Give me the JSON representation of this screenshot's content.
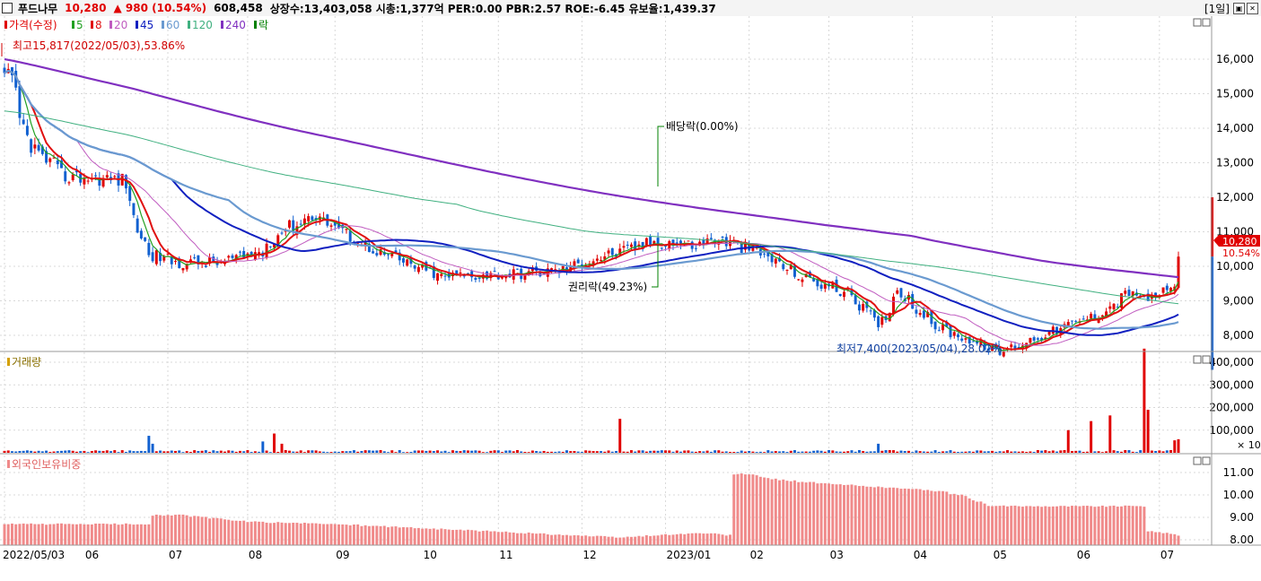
{
  "header": {
    "name": "푸드나무",
    "price": "10,280",
    "change": "▲ 980 (10.54%)",
    "volume": "608,458",
    "stats": "상장수:13,403,058  시총:1,377억  PER:0.00  PBR:2.57  ROE:-6.45  유보율:1,439.37",
    "period": "[1일]"
  },
  "legend": {
    "price": "가격(수정)",
    "ma": [
      {
        "label": "5",
        "color": "#22a022"
      },
      {
        "label": "8",
        "color": "#e01010"
      },
      {
        "label": "20",
        "color": "#c05cc0"
      },
      {
        "label": "45",
        "color": "#1020c0"
      },
      {
        "label": "60",
        "color": "#6a9ad0"
      },
      {
        "label": "120",
        "color": "#40b080"
      },
      {
        "label": "240",
        "color": "#8030c0"
      }
    ],
    "rak": "락"
  },
  "colors": {
    "up": "#e00000",
    "down": "#1060d0",
    "ma5": "#22a022",
    "ma8": "#e01010",
    "ma20": "#c05cc0",
    "ma45": "#1020c0",
    "ma60": "#6a9ad0",
    "ma120": "#40b080",
    "ma240": "#8030c0",
    "foreign": "#f08a8a"
  },
  "annotations": {
    "high": "최고15,817(2022/05/03),53.86%",
    "dividend": "배당락(0.00%)",
    "rights": "권리락(49.23%)",
    "low": "최저7,400(2023/05/04),28.02%"
  },
  "panels": {
    "volume_title": "거래량",
    "foreign_title": "외국인보유비중",
    "volume_unit": "× 10"
  },
  "price_tags": {
    "price": "10,280",
    "pct": "10.54%"
  },
  "chart_data": [
    {
      "type": "candlestick",
      "title": "가격(수정)",
      "ylim": [
        7000,
        16500
      ],
      "yticks": [
        "16,000",
        "15,000",
        "14,000",
        "13,000",
        "12,000",
        "11,000",
        "10,000",
        "9,000",
        "8,000"
      ],
      "xticks": [
        "2022/05/03",
        "06",
        "07",
        "08",
        "09",
        "10",
        "11",
        "12",
        "2023/01",
        "02",
        "03",
        "04",
        "05",
        "06",
        "07"
      ],
      "close_anchors": {
        "dates": [
          "2022-05-03",
          "2022-05-12",
          "2022-05-25",
          "2022-06-15",
          "2022-06-24",
          "2022-07-05",
          "2022-07-20",
          "2022-08-05",
          "2022-08-12",
          "2022-08-25",
          "2022-09-15",
          "2022-10-10",
          "2022-11-10",
          "2022-11-25",
          "2022-12-05",
          "2022-12-15",
          "2022-12-28",
          "2023-01-03",
          "2023-01-12",
          "2023-01-20",
          "2023-02-05",
          "2023-02-20",
          "2023-03-10",
          "2023-03-21",
          "2023-03-28",
          "2023-04-10",
          "2023-04-25",
          "2023-05-04",
          "2023-05-20",
          "2023-05-30",
          "2023-06-10",
          "2023-06-22",
          "2023-06-26",
          "2023-07-06",
          "2023-07-10"
        ],
        "values": [
          15800,
          13500,
          12600,
          12500,
          10400,
          10100,
          10100,
          10400,
          11000,
          11500,
          10500,
          9700,
          9800,
          9900,
          10200,
          10400,
          10700,
          10700,
          10600,
          10800,
          10400,
          9700,
          9200,
          8300,
          9300,
          8300,
          7800,
          7500,
          8000,
          8300,
          8600,
          9300,
          9000,
          9300,
          10280
        ]
      },
      "ma_end": {
        "5": 9600,
        "8": 9700,
        "20": 9700,
        "45": 8800,
        "60": 8600,
        "120": 8950,
        "240": 9750
      },
      "ma240_start": 16000,
      "high": 15817,
      "low": 7400
    },
    {
      "type": "bar",
      "title": "거래량",
      "ylim": [
        0,
        480000
      ],
      "yticks": [
        "400,000",
        "300,000",
        "200,000",
        "100,000"
      ],
      "spikes": [
        {
          "date": "2022-06-24",
          "value": 75000
        },
        {
          "date": "2022-06-27",
          "value": 40000
        },
        {
          "date": "2022-08-05",
          "value": 50000
        },
        {
          "date": "2022-08-10",
          "value": 85000
        },
        {
          "date": "2022-08-12",
          "value": 40000
        },
        {
          "date": "2022-12-15",
          "value": 150000
        },
        {
          "date": "2023-03-21",
          "value": 40000
        },
        {
          "date": "2023-05-30",
          "value": 100000
        },
        {
          "date": "2023-06-07",
          "value": 140000
        },
        {
          "date": "2023-06-14",
          "value": 165000
        },
        {
          "date": "2023-06-27",
          "value": 460000
        },
        {
          "date": "2023-06-28",
          "value": 190000
        },
        {
          "date": "2023-07-07",
          "value": 55000
        },
        {
          "date": "2023-07-10",
          "value": 60000
        }
      ]
    },
    {
      "type": "bar",
      "title": "외국인보유비중",
      "ylim": [
        7.8,
        11.6
      ],
      "yticks": [
        "11.00",
        "10.00",
        "9.00",
        "8.00"
      ],
      "levels": {
        "dates": [
          "2022-05-03",
          "2022-06-24",
          "2022-06-27",
          "2022-07-07",
          "2022-08-01",
          "2022-09-01",
          "2022-12-16",
          "2022-12-28",
          "2023-01-15",
          "2023-01-25",
          "2023-01-26",
          "2023-01-28",
          "2023-02-10",
          "2023-03-01",
          "2023-03-15",
          "2023-04-10",
          "2023-04-20",
          "2023-05-01",
          "2023-06-01",
          "2023-06-27",
          "2023-06-28",
          "2023-07-10"
        ],
        "values": [
          8.7,
          8.7,
          9.1,
          9.1,
          8.8,
          8.7,
          8.1,
          8.2,
          8.3,
          8.2,
          10.9,
          11.0,
          10.7,
          10.5,
          10.4,
          10.2,
          10.0,
          9.5,
          9.5,
          9.5,
          8.4,
          8.2
        ]
      }
    }
  ]
}
